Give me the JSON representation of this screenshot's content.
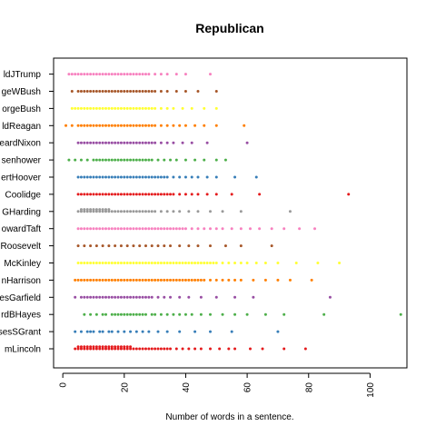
{
  "chart_data": {
    "type": "scatter",
    "title": "Republican",
    "xlabel": "Number of words in a sentence.",
    "ylabel": "",
    "xlim": [
      -3,
      112
    ],
    "xticks": [
      0,
      20,
      40,
      60,
      80,
      100
    ],
    "grid": false,
    "series": [
      {
        "name": "AbrahamLincoln",
        "label": "mLincoln",
        "color": "#E41A1C",
        "values": [
          4,
          5,
          5,
          6,
          6,
          7,
          7,
          8,
          8,
          9,
          9,
          10,
          10,
          11,
          11,
          12,
          12,
          13,
          13,
          14,
          14,
          15,
          15,
          16,
          16,
          17,
          17,
          18,
          18,
          19,
          19,
          20,
          20,
          21,
          21,
          22,
          22,
          23,
          24,
          25,
          26,
          27,
          28,
          29,
          30,
          31,
          32,
          33,
          34,
          35,
          37,
          39,
          41,
          43,
          45,
          48,
          51,
          54,
          56,
          61,
          65,
          72,
          79
        ]
      },
      {
        "name": "UlyssesSGrant",
        "label": "sesSGrant",
        "color": "#377EB8",
        "values": [
          4,
          6,
          8,
          9,
          10,
          12,
          13,
          15,
          16,
          18,
          20,
          22,
          24,
          26,
          28,
          31,
          34,
          38,
          43,
          48,
          55,
          70
        ]
      },
      {
        "name": "RutherfordBHayes",
        "label": "rdBHayes",
        "color": "#4DAF4A",
        "values": [
          7,
          9,
          11,
          13,
          14,
          16,
          17,
          18,
          19,
          20,
          21,
          22,
          23,
          24,
          25,
          26,
          27,
          29,
          30,
          32,
          34,
          36,
          38,
          40,
          42,
          45,
          48,
          52,
          56,
          60,
          66,
          72,
          85,
          110
        ]
      },
      {
        "name": "JamesGarfield",
        "label": "esGarfield",
        "color": "#984EA3",
        "values": [
          4,
          6,
          7,
          8,
          9,
          10,
          11,
          12,
          13,
          14,
          15,
          16,
          17,
          18,
          19,
          20,
          21,
          22,
          23,
          24,
          25,
          26,
          27,
          28,
          29,
          31,
          33,
          35,
          38,
          41,
          45,
          50,
          56,
          62,
          87
        ]
      },
      {
        "name": "BenjaminHarrison",
        "label": "nHarrison",
        "color": "#FF7F00",
        "values": [
          4,
          5,
          6,
          7,
          8,
          9,
          10,
          11,
          12,
          13,
          14,
          15,
          16,
          17,
          18,
          19,
          20,
          21,
          22,
          23,
          24,
          25,
          26,
          27,
          28,
          29,
          30,
          31,
          32,
          33,
          34,
          35,
          36,
          37,
          38,
          39,
          40,
          41,
          42,
          43,
          44,
          45,
          46,
          48,
          50,
          52,
          54,
          56,
          58,
          62,
          66,
          70,
          74,
          81
        ]
      },
      {
        "name": "WilliamMcKinley",
        "label": "McKinley",
        "color": "#FFFF33",
        "values": [
          5,
          6,
          7,
          8,
          9,
          10,
          11,
          12,
          13,
          14,
          15,
          16,
          17,
          18,
          19,
          20,
          21,
          22,
          23,
          24,
          25,
          26,
          27,
          28,
          29,
          30,
          31,
          32,
          33,
          34,
          35,
          36,
          37,
          38,
          39,
          40,
          41,
          42,
          43,
          44,
          45,
          46,
          47,
          48,
          49,
          50,
          52,
          54,
          56,
          58,
          60,
          63,
          66,
          70,
          76,
          83,
          90
        ]
      },
      {
        "name": "TheodoreRoosevelt",
        "label": "Roosevelt",
        "color": "#A65628",
        "values": [
          5,
          7,
          9,
          11,
          13,
          15,
          17,
          19,
          21,
          23,
          25,
          27,
          29,
          31,
          33,
          35,
          38,
          41,
          44,
          48,
          53,
          58,
          68
        ]
      },
      {
        "name": "WilliamHowardTaft",
        "label": "owardTaft",
        "color": "#F781BF",
        "values": [
          5,
          6,
          7,
          8,
          9,
          10,
          11,
          12,
          13,
          14,
          15,
          16,
          17,
          18,
          19,
          20,
          21,
          22,
          23,
          24,
          25,
          26,
          27,
          28,
          29,
          30,
          31,
          32,
          33,
          34,
          35,
          36,
          37,
          38,
          39,
          40,
          42,
          44,
          46,
          48,
          50,
          52,
          55,
          58,
          61,
          64,
          68,
          72,
          77,
          82
        ]
      },
      {
        "name": "WarrenGHarding",
        "label": "GHarding",
        "color": "#999999",
        "values": [
          5,
          6,
          6,
          7,
          7,
          8,
          8,
          9,
          9,
          10,
          10,
          11,
          11,
          12,
          12,
          13,
          13,
          14,
          14,
          15,
          15,
          16,
          17,
          18,
          19,
          20,
          21,
          22,
          23,
          24,
          25,
          26,
          27,
          28,
          29,
          30,
          32,
          34,
          36,
          38,
          41,
          44,
          48,
          52,
          58,
          74
        ]
      },
      {
        "name": "CalvinCoolidge",
        "label": "Coolidge",
        "color": "#E41A1C",
        "values": [
          5,
          6,
          7,
          8,
          9,
          10,
          11,
          12,
          13,
          14,
          15,
          16,
          17,
          18,
          19,
          20,
          21,
          22,
          23,
          24,
          25,
          26,
          27,
          28,
          29,
          30,
          31,
          32,
          33,
          34,
          35,
          36,
          38,
          40,
          42,
          44,
          47,
          50,
          55,
          64,
          93
        ]
      },
      {
        "name": "HerbertHoover",
        "label": "ertHoover",
        "color": "#377EB8",
        "values": [
          5,
          6,
          7,
          8,
          9,
          10,
          11,
          12,
          13,
          14,
          15,
          16,
          17,
          18,
          19,
          20,
          21,
          22,
          23,
          24,
          25,
          26,
          27,
          28,
          29,
          30,
          31,
          32,
          33,
          34,
          36,
          38,
          40,
          42,
          44,
          47,
          50,
          56,
          63
        ]
      },
      {
        "name": "DwightDEisenhower",
        "label": "senhower",
        "color": "#4DAF4A",
        "values": [
          2,
          4,
          6,
          8,
          10,
          11,
          12,
          13,
          14,
          15,
          16,
          17,
          18,
          19,
          20,
          21,
          22,
          23,
          24,
          25,
          26,
          27,
          28,
          29,
          31,
          33,
          35,
          37,
          40,
          43,
          46,
          50,
          53
        ]
      },
      {
        "name": "RichardNixon",
        "label": "eardNixon",
        "color": "#984EA3",
        "values": [
          5,
          6,
          7,
          8,
          9,
          10,
          11,
          12,
          13,
          14,
          15,
          16,
          17,
          18,
          19,
          20,
          21,
          22,
          23,
          24,
          25,
          26,
          27,
          28,
          29,
          30,
          32,
          34,
          36,
          39,
          42,
          47,
          60
        ]
      },
      {
        "name": "RonaldReagan",
        "label": "ldReagan",
        "color": "#FF7F00",
        "values": [
          1,
          3,
          5,
          6,
          7,
          8,
          9,
          10,
          11,
          12,
          13,
          14,
          15,
          16,
          17,
          18,
          19,
          20,
          21,
          22,
          23,
          24,
          25,
          26,
          27,
          28,
          29,
          30,
          32,
          34,
          36,
          38,
          40,
          43,
          46,
          50,
          59
        ]
      },
      {
        "name": "GeorgeBush",
        "label": "orgeBush",
        "color": "#FFFF33",
        "values": [
          3,
          4,
          5,
          6,
          7,
          8,
          9,
          10,
          11,
          12,
          13,
          14,
          15,
          16,
          17,
          18,
          19,
          20,
          21,
          22,
          23,
          24,
          25,
          26,
          27,
          28,
          29,
          30,
          32,
          34,
          36,
          39,
          42,
          46,
          50
        ]
      },
      {
        "name": "GeorgeWBush",
        "label": "geWBush",
        "color": "#A65628",
        "values": [
          3,
          5,
          6,
          7,
          8,
          9,
          10,
          11,
          12,
          13,
          14,
          15,
          16,
          17,
          18,
          19,
          20,
          21,
          22,
          23,
          24,
          25,
          26,
          27,
          28,
          29,
          30,
          32,
          34,
          37,
          40,
          44,
          50
        ]
      },
      {
        "name": "DonaldJTrump",
        "label": "ldJTrump",
        "color": "#F781BF",
        "values": [
          2,
          3,
          4,
          5,
          6,
          7,
          8,
          9,
          10,
          11,
          12,
          13,
          14,
          15,
          16,
          17,
          18,
          19,
          20,
          21,
          22,
          23,
          24,
          25,
          26,
          27,
          28,
          30,
          32,
          34,
          37,
          40,
          48
        ]
      }
    ]
  }
}
